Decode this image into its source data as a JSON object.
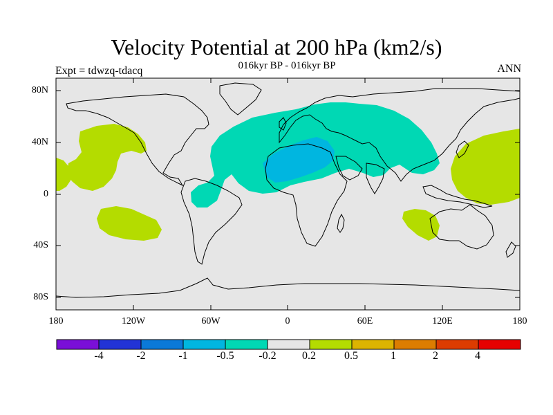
{
  "title": "Velocity Potential at 200 hPa (km2/s)",
  "subtitle": "016kyr BP - 016kyr BP",
  "experiment": "Expt = tdwzq-tdacq",
  "season": "ANN",
  "lat_ticks": [
    "80N",
    "40N",
    "0",
    "40S",
    "80S"
  ],
  "lon_ticks": [
    "180",
    "120W",
    "60W",
    "0",
    "60E",
    "120E",
    "180"
  ],
  "colorbar": {
    "labels": [
      "-4",
      "-2",
      "-1",
      "-0.5",
      "-0.2",
      "0.2",
      "0.5",
      "1",
      "2",
      "4"
    ],
    "colors": [
      "#7a0fd8",
      "#2233d6",
      "#0b79d8",
      "#00b6e0",
      "#00d8b4",
      "#e6e6e6",
      "#b4dc00",
      "#dcb400",
      "#dc7d00",
      "#dc3c00",
      "#e60000"
    ]
  },
  "chart_data": {
    "type": "heatmap",
    "variable": "Velocity Potential at 200 hPa",
    "units": "km2/s",
    "x_range": [
      -180,
      180
    ],
    "y_range": [
      -90,
      90
    ],
    "levels": [
      -4,
      -2,
      -1,
      -0.5,
      -0.2,
      0.2,
      0.5,
      1,
      2,
      4
    ],
    "background_category": "-0.2 to 0.2",
    "regions": [
      {
        "category": "-0.5 to -0.2",
        "color": "#00d8b4",
        "description": "Atlantic, Europe, North Africa, Middle East, Asia"
      },
      {
        "category": "-1 to -0.5",
        "color": "#00b6e0",
        "description": "Sahara and Mediterranean core"
      },
      {
        "category": "0.2 to 0.5",
        "color": "#b4dc00",
        "description": "NE Pacific"
      },
      {
        "category": "0.2 to 0.5",
        "color": "#b4dc00",
        "description": "E Pacific"
      },
      {
        "category": "0.2 to 0.5",
        "color": "#b4dc00",
        "description": "SE Pacific"
      },
      {
        "category": "0.2 to 0.5",
        "color": "#b4dc00",
        "description": "W Pacific"
      },
      {
        "category": "0.2 to 0.5",
        "color": "#b4dc00",
        "description": "Indian Ocean off W Australia"
      }
    ]
  }
}
